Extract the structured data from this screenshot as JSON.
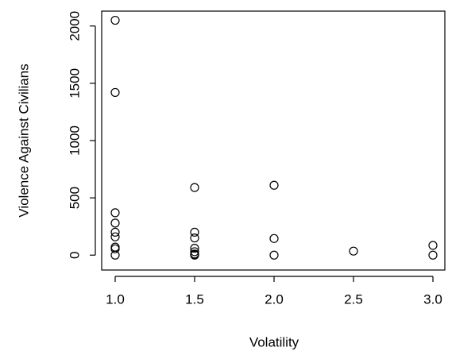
{
  "chart_data": {
    "type": "scatter",
    "x_label": "Volatility",
    "y_label": "Violence Against Civilians",
    "x": [
      1,
      1,
      1,
      1,
      1,
      1,
      1,
      1,
      1,
      1.5,
      1.5,
      1.5,
      1.5,
      1.5,
      1.5,
      1.5,
      1.5,
      2,
      2,
      2,
      2.5,
      3,
      3
    ],
    "values": [
      2050,
      1420,
      370,
      280,
      200,
      160,
      70,
      55,
      0,
      590,
      200,
      150,
      60,
      30,
      10,
      5,
      0,
      610,
      145,
      0,
      35,
      85,
      0
    ],
    "xlim": [
      0.915,
      3.075
    ],
    "ylim": [
      -130,
      2130
    ],
    "xticks": [
      {
        "value": 1,
        "label": "1.0"
      },
      {
        "value": 1.5,
        "label": "1.5"
      },
      {
        "value": 2,
        "label": "2.0"
      },
      {
        "value": 2.5,
        "label": "2.5"
      },
      {
        "value": 3,
        "label": "3.0"
      }
    ],
    "yticks": [
      0,
      500,
      1000,
      1500,
      2000
    ],
    "color": "#000000"
  }
}
